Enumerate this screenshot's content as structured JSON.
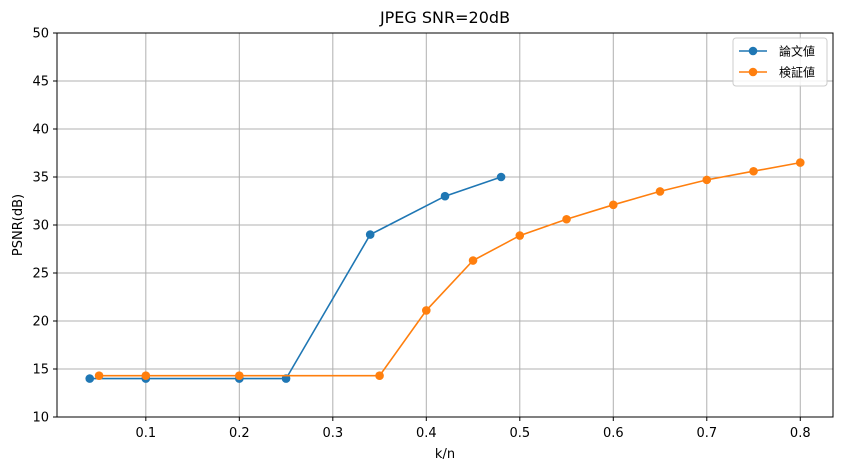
{
  "chart_data": {
    "type": "line",
    "title": "JPEG SNR=20dB",
    "xlabel": "k/n",
    "ylabel": "PSNR(dB)",
    "xlim": [
      0.005,
      0.835
    ],
    "ylim": [
      10,
      50
    ],
    "xticks": [
      0.1,
      0.2,
      0.3,
      0.4,
      0.5,
      0.6,
      0.7,
      0.8
    ],
    "yticks": [
      10,
      15,
      20,
      25,
      30,
      35,
      40,
      45,
      50
    ],
    "grid": true,
    "legend_position": "top-right",
    "series": [
      {
        "name": "論文値",
        "color": "#1f77b4",
        "x": [
          0.04,
          0.1,
          0.2,
          0.25,
          0.34,
          0.42,
          0.48
        ],
        "y": [
          14.0,
          14.0,
          14.0,
          14.0,
          29.0,
          33.0,
          35.0
        ]
      },
      {
        "name": "検証値",
        "color": "#ff7f0e",
        "x": [
          0.05,
          0.1,
          0.2,
          0.35,
          0.4,
          0.45,
          0.5,
          0.55,
          0.6,
          0.65,
          0.7,
          0.75,
          0.8
        ],
        "y": [
          14.3,
          14.3,
          14.3,
          14.3,
          21.1,
          26.3,
          28.9,
          30.6,
          32.1,
          33.5,
          34.7,
          35.6,
          36.5
        ]
      }
    ]
  }
}
